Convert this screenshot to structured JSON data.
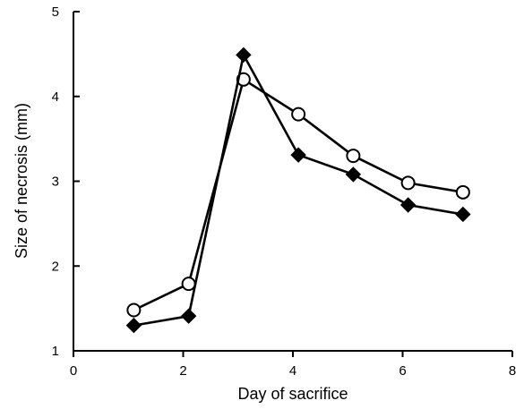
{
  "chart_data": {
    "type": "line",
    "title": "",
    "xlabel": "Day of sacrifice",
    "ylabel": "Size of necrosis (mm)",
    "xlim": [
      0,
      8
    ],
    "ylim": [
      1,
      5
    ],
    "xticks": [
      0,
      2,
      4,
      6,
      8
    ],
    "yticks": [
      1,
      2,
      3,
      4,
      5
    ],
    "grid": false,
    "legend": "none",
    "series": [
      {
        "marker": "open-circle",
        "color": "#000000",
        "x": [
          1.1,
          2.1,
          3.1,
          4.1,
          5.1,
          6.1,
          7.1
        ],
        "y": [
          1.48,
          1.79,
          4.2,
          3.79,
          3.3,
          2.98,
          2.87
        ]
      },
      {
        "marker": "filled-diamond",
        "color": "#000000",
        "x": [
          1.1,
          2.1,
          3.1,
          4.1,
          5.1,
          6.1,
          7.1
        ],
        "y": [
          1.3,
          1.41,
          4.49,
          3.31,
          3.08,
          2.72,
          2.61
        ]
      }
    ]
  }
}
